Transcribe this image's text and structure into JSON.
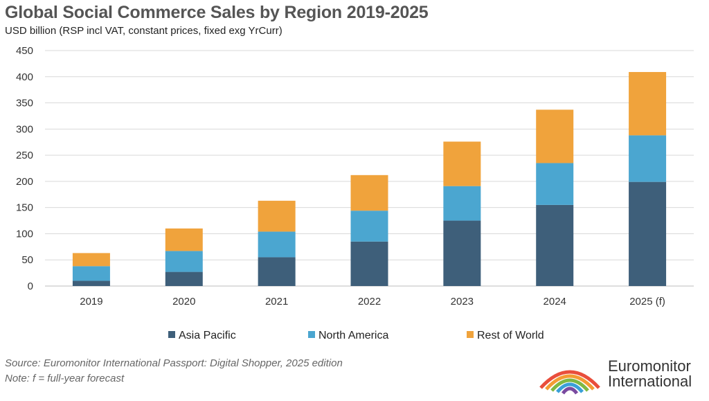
{
  "header": {
    "title": "Global Social Commerce Sales by Region 2019-2025",
    "subtitle": "USD billion (RSP incl VAT, constant prices, fixed exg YrCurr)"
  },
  "footer": {
    "source": "Source: Euromonitor International Passport: Digital Shopper, 2025 edition",
    "note": "Note: f = full-year forecast"
  },
  "logo": {
    "line1": "Euromonitor",
    "line2": "International"
  },
  "chart_data": {
    "type": "bar",
    "stacked": true,
    "categories": [
      "2019",
      "2020",
      "2021",
      "2022",
      "2023",
      "2024",
      "2025 (f)"
    ],
    "series": [
      {
        "name": "Asia Pacific",
        "color": "#3e5f7a",
        "values": [
          10,
          27,
          55,
          85,
          125,
          155,
          199
        ]
      },
      {
        "name": "North America",
        "color": "#4ba6d0",
        "values": [
          28,
          40,
          49,
          59,
          66,
          80,
          89
        ]
      },
      {
        "name": "Rest of World",
        "color": "#f0a33c",
        "values": [
          25,
          43,
          59,
          68,
          85,
          102,
          121
        ]
      }
    ],
    "ylim": [
      0,
      450
    ],
    "yticks": [
      "0",
      "50",
      "100",
      "150",
      "200",
      "250",
      "300",
      "350",
      "400",
      "450"
    ],
    "grid": true,
    "legend_position": "bottom"
  }
}
